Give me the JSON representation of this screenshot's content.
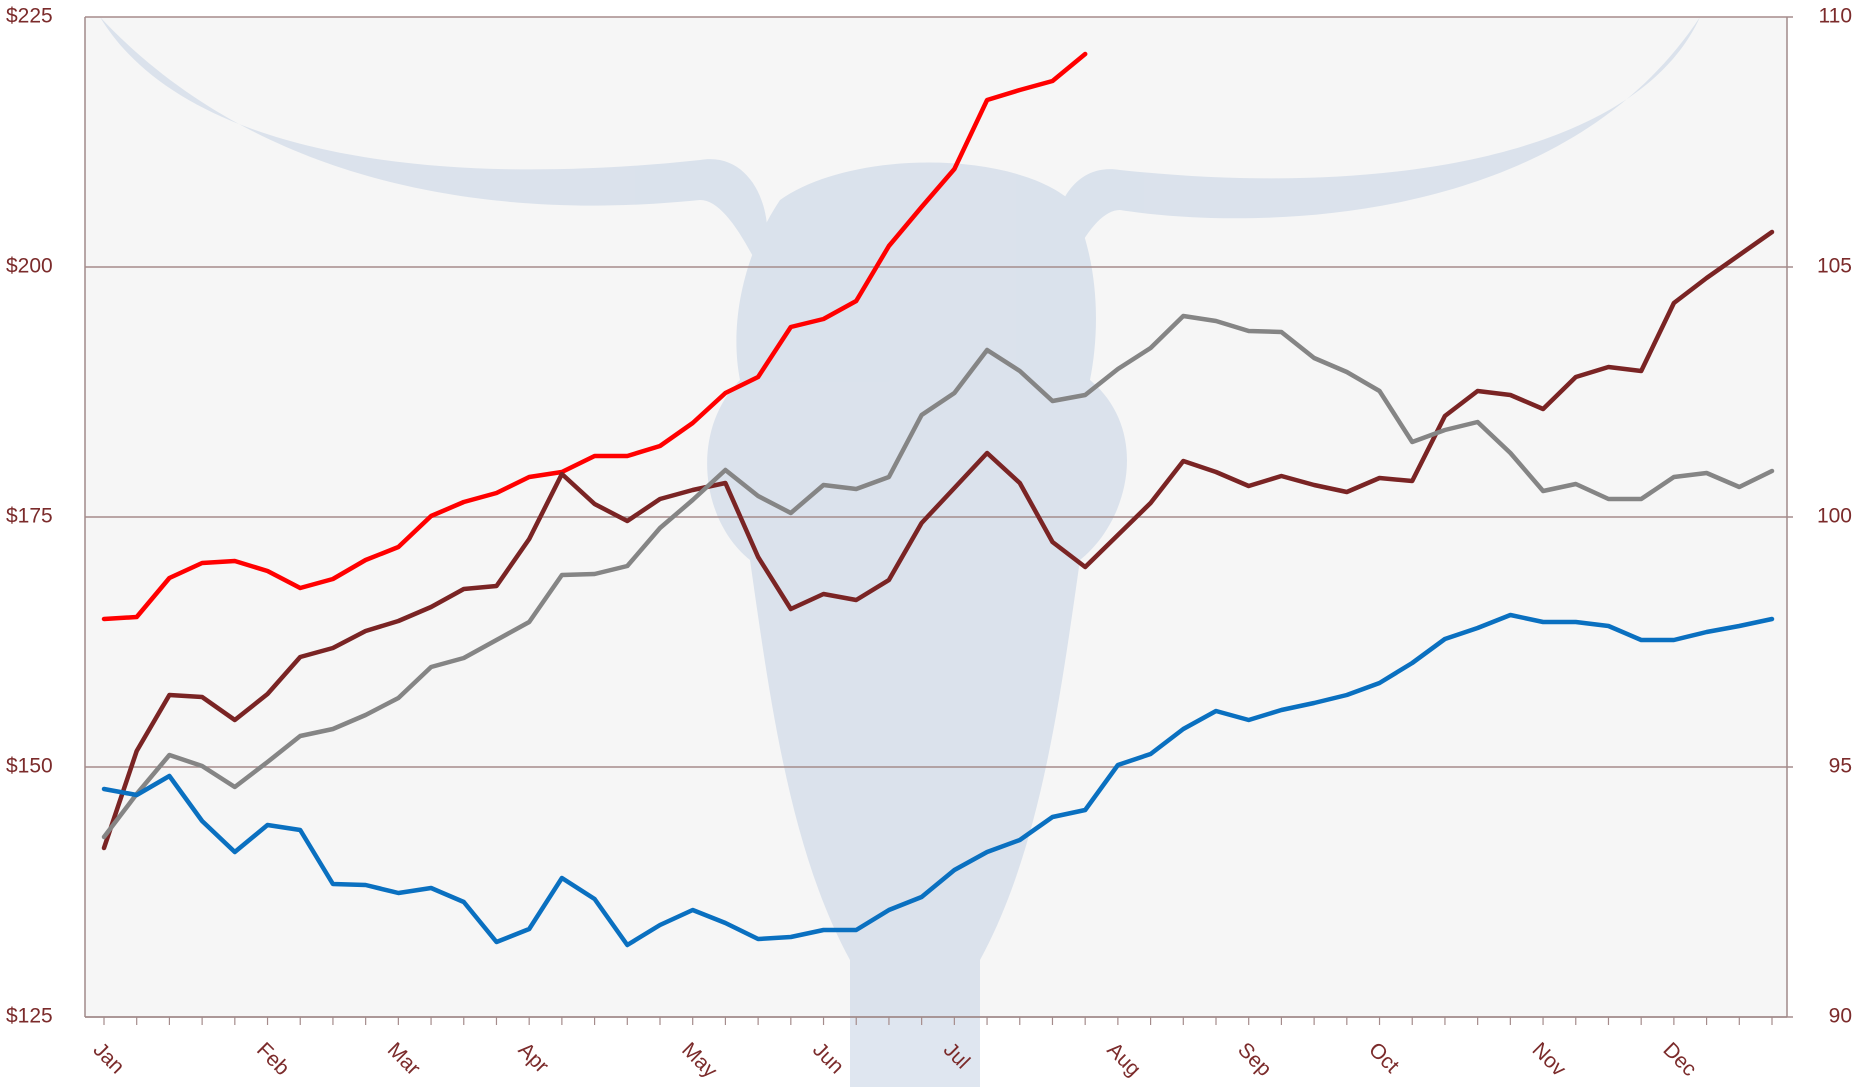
{
  "chart_data": {
    "type": "line",
    "categories": [
      "Jan",
      null,
      null,
      null,
      null,
      "Feb",
      null,
      null,
      null,
      "Mar",
      null,
      null,
      null,
      "Apr",
      null,
      null,
      null,
      null,
      "May",
      null,
      null,
      null,
      "Jun",
      null,
      null,
      null,
      "Jul",
      null,
      null,
      null,
      null,
      "Aug",
      null,
      null,
      null,
      "Sep",
      null,
      null,
      null,
      "Oct",
      null,
      null,
      null,
      null,
      "Nov",
      null,
      null,
      null,
      "Dec",
      null,
      null,
      null
    ],
    "series": [
      {
        "color": "#ff0000",
        "values": [
          164.8,
          165.0,
          168.9,
          170.4,
          170.6,
          169.6,
          167.9,
          168.8,
          170.7,
          172.0,
          175.1,
          176.5,
          177.4,
          179.0,
          179.5,
          181.1,
          181.1,
          182.1,
          184.4,
          187.4,
          189.0,
          194.0,
          194.8,
          196.6,
          202.1,
          206.0,
          209.8,
          216.7,
          217.7,
          218.6,
          221.3,
          null,
          null,
          null,
          null,
          null,
          null,
          null,
          null,
          null,
          null,
          null,
          null,
          null,
          null,
          null,
          null,
          null,
          null,
          null,
          null,
          null
        ]
      },
      {
        "color": "#7a2424",
        "values": [
          141.9,
          151.6,
          157.2,
          157.0,
          154.7,
          157.3,
          161.0,
          161.9,
          163.6,
          164.6,
          166.0,
          167.8,
          168.1,
          172.8,
          179.3,
          176.3,
          174.6,
          176.8,
          177.7,
          178.4,
          171.0,
          165.8,
          167.3,
          166.7,
          168.7,
          174.4,
          177.9,
          181.4,
          178.4,
          172.5,
          170.0,
          173.2,
          176.4,
          180.6,
          179.5,
          178.1,
          179.1,
          178.2,
          177.5,
          178.9,
          178.6,
          185.1,
          187.6,
          187.2,
          185.8,
          189.0,
          190.0,
          189.6,
          196.4,
          198.9,
          201.2,
          203.5
        ]
      },
      {
        "color": "#858585",
        "values": [
          143.0,
          147.3,
          151.2,
          150.1,
          148.0,
          150.5,
          153.1,
          153.8,
          155.2,
          156.9,
          160.0,
          160.9,
          162.7,
          164.5,
          169.2,
          169.3,
          170.1,
          173.9,
          176.7,
          179.7,
          177.1,
          175.4,
          178.2,
          177.8,
          179.0,
          185.2,
          187.4,
          191.7,
          189.6,
          186.6,
          187.2,
          189.8,
          191.9,
          195.1,
          194.6,
          193.6,
          193.5,
          190.9,
          189.5,
          187.6,
          182.5,
          183.7,
          184.5,
          181.4,
          177.6,
          178.3,
          176.8,
          176.8,
          179.0,
          179.4,
          178.0,
          179.6
        ]
      },
      {
        "color": "#0a70c0",
        "values": [
          147.8,
          147.2,
          149.1,
          144.6,
          141.5,
          144.2,
          143.7,
          138.3,
          138.2,
          137.4,
          137.9,
          136.5,
          132.5,
          133.8,
          138.9,
          136.8,
          132.2,
          134.2,
          135.7,
          134.4,
          132.8,
          133.0,
          133.7,
          133.7,
          135.7,
          137.0,
          139.7,
          141.5,
          142.7,
          145.0,
          145.7,
          150.2,
          151.3,
          153.8,
          155.6,
          154.7,
          155.7,
          156.4,
          157.2,
          158.4,
          160.4,
          162.8,
          163.9,
          165.2,
          164.5,
          164.5,
          164.1,
          162.7,
          162.7,
          163.5,
          164.1,
          164.8
        ]
      }
    ],
    "ylim": [
      125,
      225
    ],
    "yticks": [
      {
        "value": 125,
        "label": "$125"
      },
      {
        "value": 150,
        "label": "$150"
      },
      {
        "value": 175,
        "label": "$175"
      },
      {
        "value": 200,
        "label": "$200"
      },
      {
        "value": 225,
        "label": "$225"
      }
    ],
    "y2lim": [
      90,
      110
    ],
    "y2ticks": [
      90,
      95,
      100,
      105,
      110
    ],
    "grid": true
  }
}
